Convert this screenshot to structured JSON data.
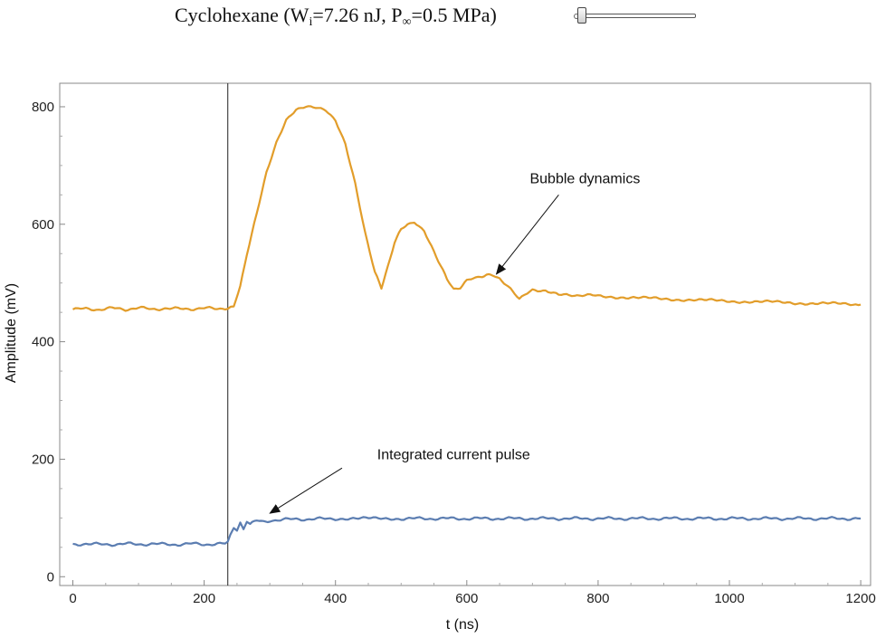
{
  "header": {
    "title_prefix": "Cyclohexane (W",
    "title_sub_i": "i",
    "title_mid": "=7.26 nJ, P",
    "title_sub_inf": "∞",
    "title_suffix": "=0.5 MPa)",
    "slider_value": 0.0
  },
  "chart_data": {
    "type": "line",
    "title": "",
    "xlabel": "t (ns)",
    "ylabel": "Amplitude (mV)",
    "xlim": [
      -20,
      1215
    ],
    "ylim": [
      -15,
      840
    ],
    "x_ticks": [
      0,
      200,
      400,
      600,
      800,
      1000,
      1200
    ],
    "y_ticks": [
      0,
      200,
      400,
      600,
      800
    ],
    "grid": false,
    "frame": true,
    "vertical_marker_x": 236,
    "series": [
      {
        "name": "Bubble dynamics",
        "color": "#E29D2A",
        "x": [
          0,
          20,
          40,
          60,
          80,
          100,
          120,
          140,
          160,
          180,
          200,
          220,
          236,
          245,
          255,
          265,
          280,
          295,
          310,
          325,
          340,
          355,
          370,
          385,
          400,
          415,
          430,
          445,
          460,
          470,
          480,
          490,
          500,
          510,
          520,
          535,
          550,
          560,
          570,
          580,
          590,
          600,
          610,
          620,
          630,
          640,
          650,
          660,
          670,
          680,
          700,
          720,
          740,
          760,
          800,
          850,
          900,
          950,
          1000,
          1050,
          1100,
          1150,
          1200
        ],
        "y": [
          455,
          456,
          455,
          457,
          455,
          458,
          455,
          457,
          456,
          456,
          457,
          456,
          458,
          458,
          495,
          550,
          620,
          690,
          740,
          778,
          795,
          800,
          798,
          793,
          775,
          735,
          668,
          585,
          518,
          490,
          530,
          570,
          590,
          600,
          605,
          590,
          555,
          530,
          505,
          490,
          493,
          503,
          508,
          512,
          513,
          512,
          508,
          498,
          484,
          473,
          487,
          488,
          479,
          480,
          478,
          475,
          473,
          471,
          469,
          468,
          466,
          465,
          463
        ]
      },
      {
        "name": "Integrated current pulse",
        "color": "#5B7DB1",
        "x": [
          0,
          20,
          40,
          60,
          80,
          100,
          120,
          140,
          160,
          180,
          200,
          220,
          232,
          236,
          240,
          245,
          250,
          255,
          260,
          265,
          270,
          280,
          290,
          300,
          320,
          340,
          360,
          400,
          450,
          500,
          600,
          700,
          800,
          900,
          1000,
          1100,
          1200
        ],
        "y": [
          55,
          56,
          55,
          55,
          56,
          55,
          56,
          55,
          55,
          56,
          55,
          56,
          56,
          58,
          70,
          85,
          78,
          91,
          82,
          93,
          90,
          95,
          94,
          96,
          97,
          98,
          98,
          99,
          99,
          99,
          99,
          99,
          99,
          99,
          99,
          99,
          99
        ]
      }
    ],
    "annotations": [
      {
        "text": "Bubble dynamics",
        "text_x": 780,
        "text_y": 670,
        "arrow_from": [
          740,
          650
        ],
        "arrow_to": [
          645,
          515
        ]
      },
      {
        "text": "Integrated current pulse",
        "text_x": 580,
        "text_y": 200,
        "arrow_from": [
          410,
          185
        ],
        "arrow_to": [
          300,
          108
        ]
      }
    ]
  }
}
